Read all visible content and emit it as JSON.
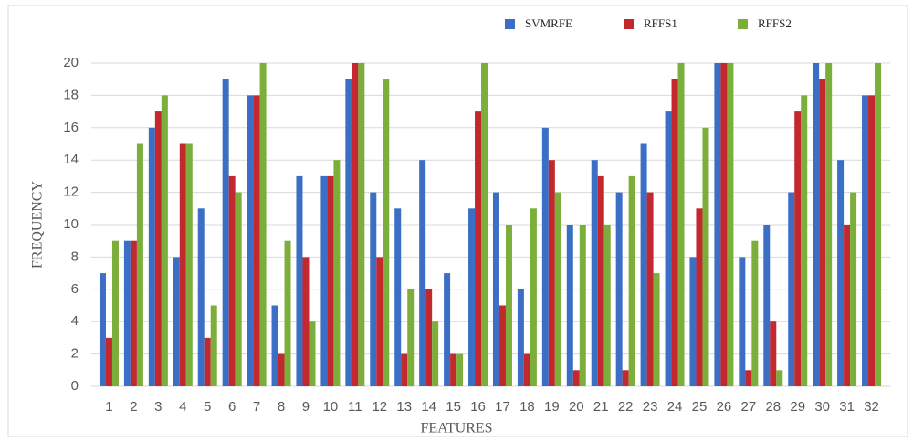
{
  "chart_data": {
    "type": "bar",
    "x_label": "FEATURES",
    "y_label": "FREQUENCY",
    "categories": [
      "1",
      "2",
      "3",
      "4",
      "5",
      "6",
      "7",
      "8",
      "9",
      "10",
      "11",
      "12",
      "13",
      "14",
      "15",
      "16",
      "17",
      "18",
      "19",
      "20",
      "21",
      "22",
      "23",
      "24",
      "25",
      "26",
      "27",
      "28",
      "29",
      "30",
      "31",
      "32"
    ],
    "series": [
      {
        "name": "SVMRFE",
        "color": "#3b6fc5",
        "values": [
          7,
          9,
          16,
          8,
          11,
          19,
          18,
          5,
          13,
          13,
          19,
          12,
          11,
          14,
          7,
          11,
          12,
          6,
          16,
          10,
          14,
          12,
          15,
          17,
          8,
          20,
          8,
          10,
          12,
          20,
          14,
          18
        ]
      },
      {
        "name": "RFFS1",
        "color": "#c2282e",
        "values": [
          3,
          9,
          17,
          15,
          3,
          13,
          18,
          2,
          8,
          13,
          20,
          8,
          2,
          6,
          2,
          17,
          5,
          2,
          14,
          1,
          13,
          1,
          12,
          19,
          11,
          20,
          1,
          4,
          17,
          19,
          10,
          18
        ]
      },
      {
        "name": "RFFS2",
        "color": "#7cae3c",
        "values": [
          9,
          15,
          18,
          15,
          5,
          12,
          20,
          9,
          4,
          14,
          20,
          19,
          6,
          4,
          2,
          20,
          10,
          11,
          12,
          10,
          10,
          13,
          7,
          20,
          16,
          20,
          9,
          1,
          18,
          20,
          12,
          20
        ]
      }
    ],
    "ylim": [
      0,
      20
    ],
    "yticks": [
      0,
      2,
      4,
      6,
      8,
      10,
      12,
      14,
      16,
      18,
      20
    ],
    "grid": true
  }
}
